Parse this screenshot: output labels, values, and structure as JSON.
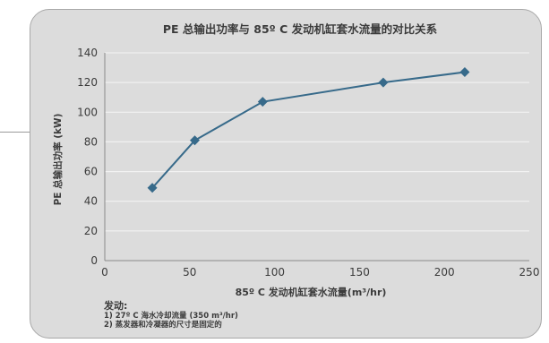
{
  "chart_data": {
    "type": "line",
    "title": "PE 总输出功率与 85º C 发动机缸套水流量的对比关系",
    "xlabel": "85º C 发动机缸套水流量(m³/hr)",
    "ylabel": "PE 总输出功率 (kW)",
    "xlim": [
      0,
      250
    ],
    "ylim": [
      0,
      140
    ],
    "x_ticks": [
      "0",
      "50",
      "100",
      "150",
      "200",
      "250"
    ],
    "y_ticks": [
      "0",
      "20",
      "40",
      "60",
      "80",
      "100",
      "120",
      "140"
    ],
    "grid": "horizontal",
    "series": [
      {
        "color": "#376a8a",
        "marker": "diamond",
        "points": [
          [
            28,
            49
          ],
          [
            53,
            81
          ],
          [
            93,
            107
          ],
          [
            164,
            120
          ],
          [
            212,
            127
          ]
        ]
      }
    ]
  },
  "notes": {
    "heading": "发动:",
    "items": [
      "1) 27º C 海水冷却流量 (350 m³/hr)",
      "2) 蒸发器和冷凝器的尺寸是固定的"
    ]
  },
  "colors": {
    "card_background": "#dcdcdc",
    "plot_background": "#dcdcdc",
    "grid": "#f5f5f5",
    "series": "#376a8a",
    "text": "#3b3b3b"
  }
}
